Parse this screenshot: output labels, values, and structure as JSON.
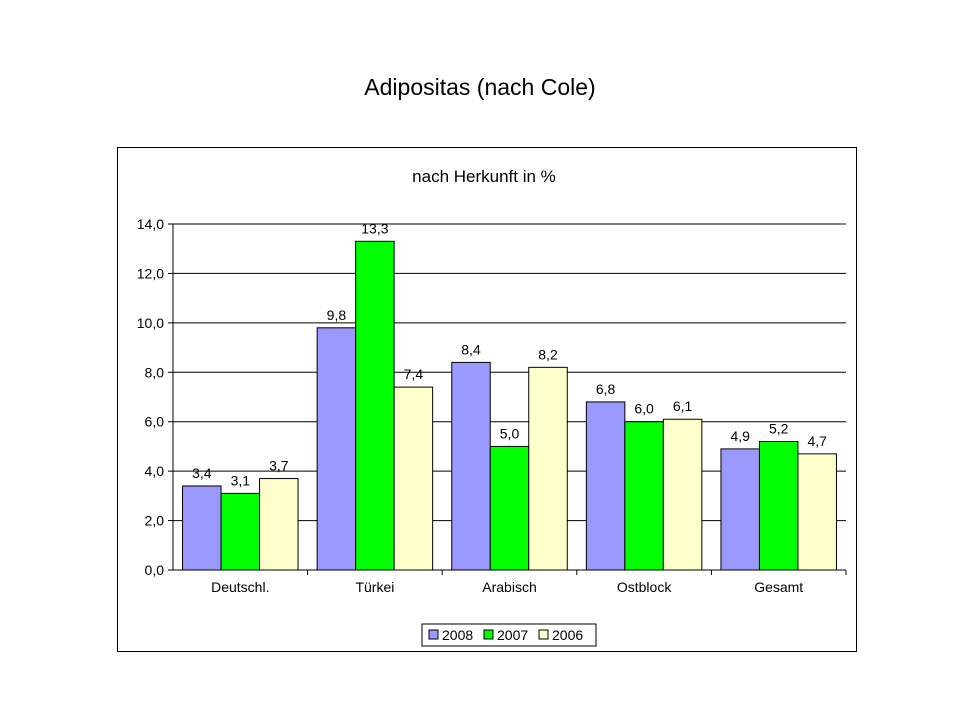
{
  "slide": {
    "title": "Adipositas (nach Cole)"
  },
  "chart_data": {
    "type": "bar",
    "title": "nach Herkunft in %",
    "xlabel": "",
    "ylabel": "",
    "categories": [
      "Deutschl.",
      "Türkei",
      "Arabisch",
      "Ostblock",
      "Gesamt"
    ],
    "series": [
      {
        "name": "2008",
        "color": "#9999ff",
        "values": [
          3.4,
          9.8,
          8.4,
          6.8,
          4.9
        ],
        "labels": [
          "3,4",
          "9,8",
          "8,4",
          "6,8",
          "4,9"
        ]
      },
      {
        "name": "2007",
        "color": "#00ff00",
        "values": [
          3.1,
          13.3,
          5.0,
          6.0,
          5.2
        ],
        "labels": [
          "3,1",
          "13,3",
          "5,0",
          "6,0",
          "5,2"
        ]
      },
      {
        "name": "2006",
        "color": "#ffffcc",
        "values": [
          3.7,
          7.4,
          8.2,
          6.1,
          4.7
        ],
        "labels": [
          "3,7",
          "7,4",
          "8,2",
          "6,1",
          "4,7"
        ]
      }
    ],
    "ylim": [
      0,
      14
    ],
    "yticks": [
      0,
      2,
      4,
      6,
      8,
      10,
      12,
      14
    ],
    "ytick_labels": [
      "0,0",
      "2,0",
      "4,0",
      "6,0",
      "8,0",
      "10,0",
      "12,0",
      "14,0"
    ],
    "grid": true,
    "legend": "bottom"
  }
}
